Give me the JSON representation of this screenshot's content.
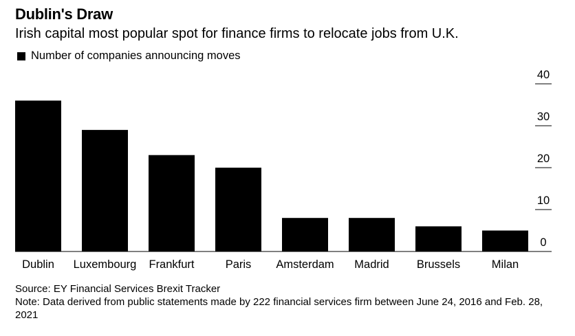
{
  "title": "Dublin's Draw",
  "subtitle": "Irish capital most popular spot for finance firms to relocate jobs from U.K.",
  "legend_label": "Number of companies announcing moves",
  "source": "Source: EY Financial Services Brexit Tracker",
  "note": "Note: Data derived from public statements made by 222 financial services firm between June 24, 2016 and Feb. 28, 2021",
  "colors": {
    "bar": "#000000",
    "axis": "#000000"
  },
  "chart_data": {
    "type": "bar",
    "title": "Dublin's Draw",
    "subtitle": "Irish capital most popular spot for finance firms to relocate jobs from U.K.",
    "categories": [
      "Dublin",
      "Luxembourg",
      "Frankfurt",
      "Paris",
      "Amsterdam",
      "Madrid",
      "Brussels",
      "Milan"
    ],
    "series": [
      {
        "name": "Number of companies announcing moves",
        "values": [
          36,
          29,
          23,
          20,
          8,
          8,
          6,
          5
        ]
      }
    ],
    "ylim": [
      0,
      40
    ],
    "yticks": [
      0,
      10,
      20,
      30,
      40
    ],
    "y_axis_side": "right",
    "grid": false,
    "legend_position": "top-left"
  }
}
